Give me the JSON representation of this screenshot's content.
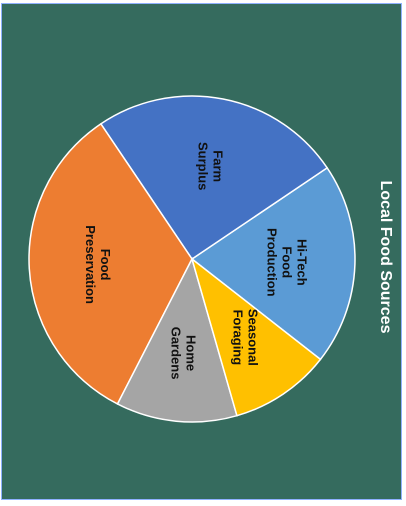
{
  "chart_data": {
    "type": "pie",
    "title": "Local Food Sources",
    "slices": [
      {
        "label": "Hi-Tech Food Production",
        "lines": [
          "Hi-Tech",
          "Food",
          "Production"
        ],
        "value": 20,
        "color": "#5b9bd5"
      },
      {
        "label": "Farm Surplus",
        "lines": [
          "Farm",
          "Surplus"
        ],
        "value": 25,
        "color": "#4472c4"
      },
      {
        "label": "Food Preservation",
        "lines": [
          "Food",
          "Preservation"
        ],
        "value": 33,
        "color": "#ed7d31"
      },
      {
        "label": "Home Gardens",
        "lines": [
          "Home",
          "Gardens"
        ],
        "value": 12,
        "color": "#a5a5a5"
      },
      {
        "label": "Seasonal Foraging",
        "lines": [
          "Seasonal",
          "Foraging"
        ],
        "value": 10,
        "color": "#ffc000"
      }
    ]
  }
}
